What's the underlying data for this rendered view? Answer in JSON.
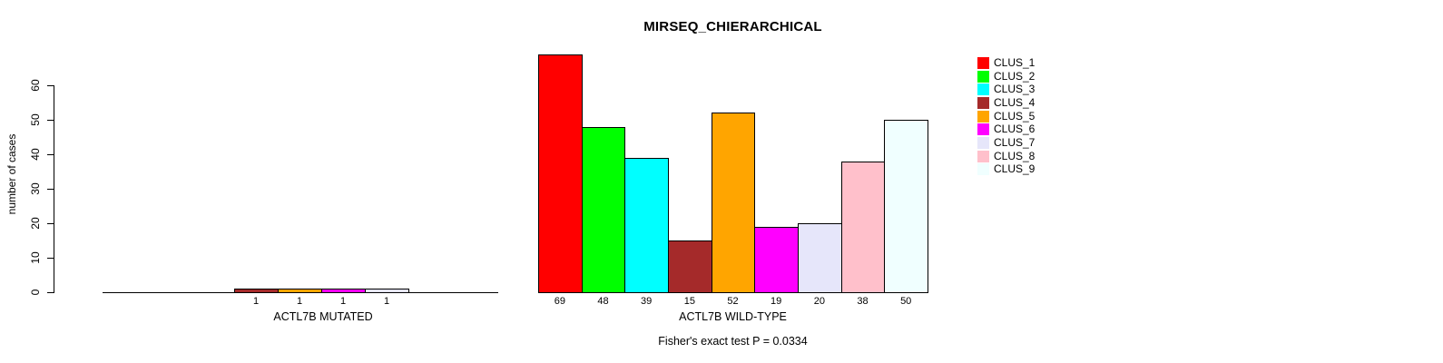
{
  "chart_data": {
    "type": "bar",
    "title": "MIRSEQ_CHIERARCHICAL",
    "ylabel": "number of cases",
    "ylim": [
      0,
      60
    ],
    "yticks": [
      0,
      10,
      20,
      30,
      40,
      50,
      60
    ],
    "grid": false,
    "legend_position": "right",
    "annotation": "Fisher's exact test P = 0.0334",
    "legend": [
      {
        "name": "CLUS_1",
        "color": "#FF0000"
      },
      {
        "name": "CLUS_2",
        "color": "#00FF00"
      },
      {
        "name": "CLUS_3",
        "color": "#00FFFF"
      },
      {
        "name": "CLUS_4",
        "color": "#A52A2A"
      },
      {
        "name": "CLUS_5",
        "color": "#FFA500"
      },
      {
        "name": "CLUS_6",
        "color": "#FF00FF"
      },
      {
        "name": "CLUS_7",
        "color": "#E6E6FA"
      },
      {
        "name": "CLUS_8",
        "color": "#FFC0CB"
      },
      {
        "name": "CLUS_9",
        "color": "#F0FFFF"
      }
    ],
    "groups": [
      {
        "label": "ACTL7B MUTATED",
        "bars": [
          {
            "cluster": "CLUS_4",
            "value": 1,
            "color": "#A52A2A"
          },
          {
            "cluster": "CLUS_5",
            "value": 1,
            "color": "#FFA500"
          },
          {
            "cluster": "CLUS_6",
            "value": 1,
            "color": "#FF00FF"
          },
          {
            "cluster": "CLUS_7",
            "value": 1,
            "color": "#E6E6FA"
          }
        ]
      },
      {
        "label": "ACTL7B WILD-TYPE",
        "bars": [
          {
            "cluster": "CLUS_1",
            "value": 69,
            "color": "#FF0000"
          },
          {
            "cluster": "CLUS_2",
            "value": 48,
            "color": "#00FF00"
          },
          {
            "cluster": "CLUS_3",
            "value": 39,
            "color": "#00FFFF"
          },
          {
            "cluster": "CLUS_4",
            "value": 15,
            "color": "#A52A2A"
          },
          {
            "cluster": "CLUS_5",
            "value": 52,
            "color": "#FFA500"
          },
          {
            "cluster": "CLUS_6",
            "value": 19,
            "color": "#FF00FF"
          },
          {
            "cluster": "CLUS_7",
            "value": 20,
            "color": "#E6E6FA"
          },
          {
            "cluster": "CLUS_8",
            "value": 38,
            "color": "#FFC0CB"
          },
          {
            "cluster": "CLUS_9",
            "value": 50,
            "color": "#F0FFFF"
          }
        ]
      }
    ]
  }
}
